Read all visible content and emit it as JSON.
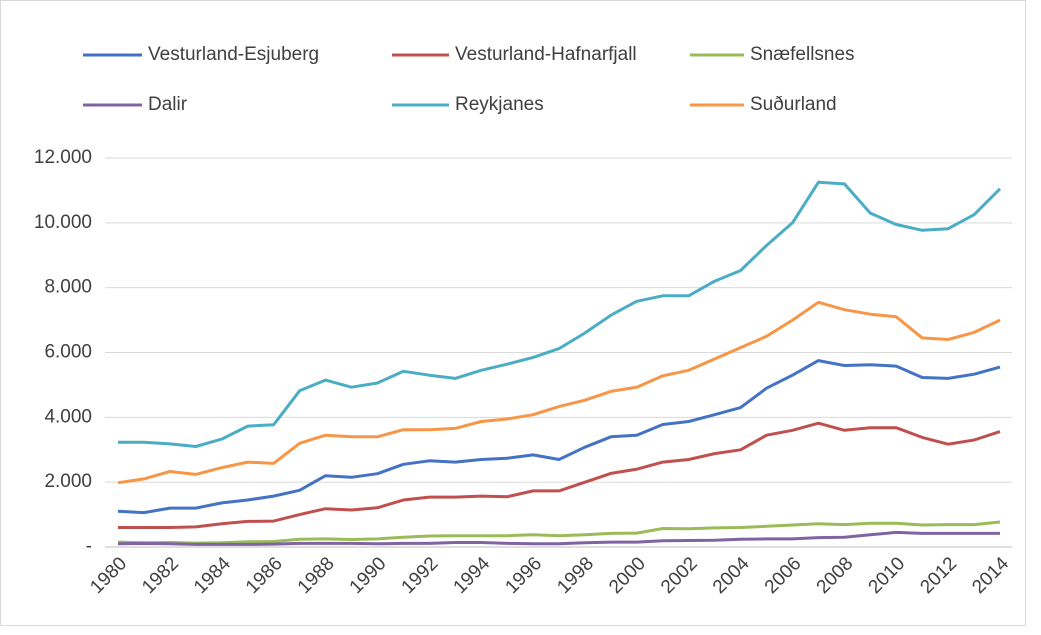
{
  "chart_data": {
    "type": "line",
    "categories": [
      "1980",
      null,
      "1982",
      null,
      "1984",
      null,
      "1986",
      null,
      "1988",
      null,
      "1990",
      null,
      "1992",
      null,
      "1994",
      null,
      "1996",
      null,
      "1998",
      null,
      "2000",
      null,
      "2002",
      null,
      "2004",
      null,
      "2006",
      null,
      "2008",
      null,
      "2010",
      null,
      "2012",
      null,
      "2014"
    ],
    "series": [
      {
        "name": "Vesturland-Esjuberg",
        "color": "#4472c4",
        "values": [
          1100,
          1060,
          1200,
          1200,
          1360,
          1450,
          1570,
          1750,
          2200,
          2150,
          2260,
          2550,
          2660,
          2620,
          2700,
          2740,
          2840,
          2700,
          3080,
          3400,
          3450,
          3780,
          3870,
          4080,
          4300,
          4900,
          5300,
          5750,
          5600,
          5620,
          5580,
          5230,
          5200,
          5330,
          5550
        ]
      },
      {
        "name": "Vesturland-Hafnarfjall",
        "color": "#c0504d",
        "values": [
          600,
          600,
          600,
          620,
          720,
          790,
          800,
          1000,
          1180,
          1140,
          1210,
          1450,
          1540,
          1540,
          1570,
          1550,
          1730,
          1730,
          2000,
          2270,
          2400,
          2620,
          2700,
          2880,
          3000,
          3450,
          3600,
          3820,
          3600,
          3680,
          3680,
          3380,
          3170,
          3300,
          3560
        ]
      },
      {
        "name": "Snæfellsnes",
        "color": "#9bbb59",
        "values": [
          150,
          130,
          140,
          120,
          130,
          160,
          170,
          240,
          250,
          230,
          250,
          300,
          340,
          350,
          350,
          350,
          380,
          350,
          380,
          420,
          430,
          570,
          560,
          590,
          600,
          640,
          680,
          720,
          690,
          730,
          730,
          680,
          690,
          690,
          770
        ]
      },
      {
        "name": "Dalir",
        "color": "#8064a2",
        "values": [
          100,
          110,
          100,
          80,
          80,
          80,
          90,
          110,
          110,
          110,
          100,
          110,
          110,
          140,
          140,
          110,
          100,
          100,
          130,
          150,
          150,
          190,
          200,
          210,
          240,
          250,
          250,
          290,
          300,
          380,
          450,
          420,
          420,
          420,
          420
        ]
      },
      {
        "name": "Reykjanes",
        "color": "#4bacc6",
        "values": [
          3230,
          3230,
          3180,
          3100,
          3330,
          3730,
          3770,
          4820,
          5150,
          4930,
          5060,
          5420,
          5300,
          5200,
          5450,
          5640,
          5850,
          6120,
          6600,
          7150,
          7580,
          7750,
          7750,
          8200,
          8530,
          9300,
          10000,
          11250,
          11200,
          10300,
          9950,
          9770,
          9820,
          10250,
          11050
        ]
      },
      {
        "name": "Suðurland",
        "color": "#f79646",
        "values": [
          1980,
          2100,
          2330,
          2240,
          2450,
          2620,
          2580,
          3200,
          3450,
          3400,
          3400,
          3620,
          3620,
          3660,
          3870,
          3950,
          4080,
          4330,
          4530,
          4800,
          4930,
          5280,
          5450,
          5800,
          6150,
          6500,
          7000,
          7550,
          7320,
          7180,
          7100,
          6450,
          6400,
          6620,
          7000
        ]
      }
    ],
    "ylim": [
      0,
      12000
    ],
    "yticks": [
      {
        "value": 0,
        "label": "-"
      },
      {
        "value": 2000,
        "label": "2.000"
      },
      {
        "value": 4000,
        "label": "4.000"
      },
      {
        "value": 6000,
        "label": "6.000"
      },
      {
        "value": 8000,
        "label": "8.000"
      },
      {
        "value": 10000,
        "label": "10.000"
      },
      {
        "value": 12000,
        "label": "12.000"
      }
    ],
    "grid": true
  }
}
